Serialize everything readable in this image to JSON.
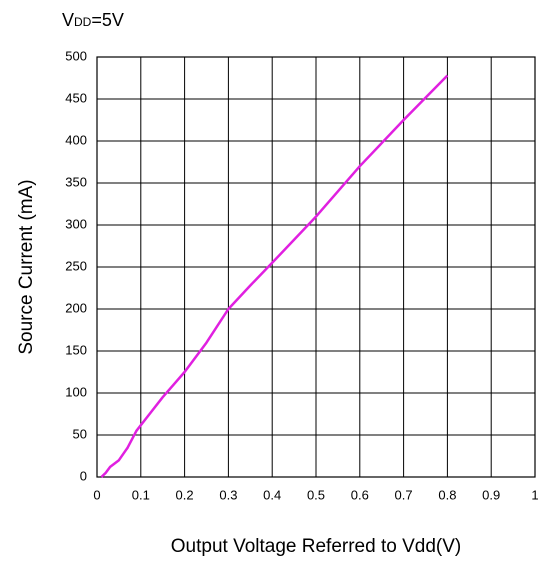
{
  "chart_data": {
    "type": "line",
    "title": [
      "V",
      "DD",
      "=5V"
    ],
    "x_label": "Output Voltage Referred to Vdd(V)",
    "y_label": "Source Current (mA)",
    "x": [
      0.01,
      0.02,
      0.03,
      0.05,
      0.07,
      0.09,
      0.12,
      0.15,
      0.2,
      0.25,
      0.3,
      0.35,
      0.4,
      0.5,
      0.6,
      0.7,
      0.8
    ],
    "series": [
      {
        "name": "Source Current",
        "color": "#e020e0",
        "values": [
          0,
          5,
          12,
          20,
          35,
          55,
          75,
          95,
          125,
          160,
          200,
          228,
          255,
          310,
          370,
          425,
          478
        ]
      }
    ],
    "xlim": [
      0,
      1
    ],
    "ylim": [
      0,
      500
    ],
    "xticks": [
      0,
      0.1,
      0.2,
      0.3,
      0.4,
      0.5,
      0.6,
      0.7,
      0.8,
      0.9,
      1
    ],
    "yticks": [
      0,
      50,
      100,
      150,
      200,
      250,
      300,
      350,
      400,
      450,
      500
    ],
    "grid": true
  }
}
